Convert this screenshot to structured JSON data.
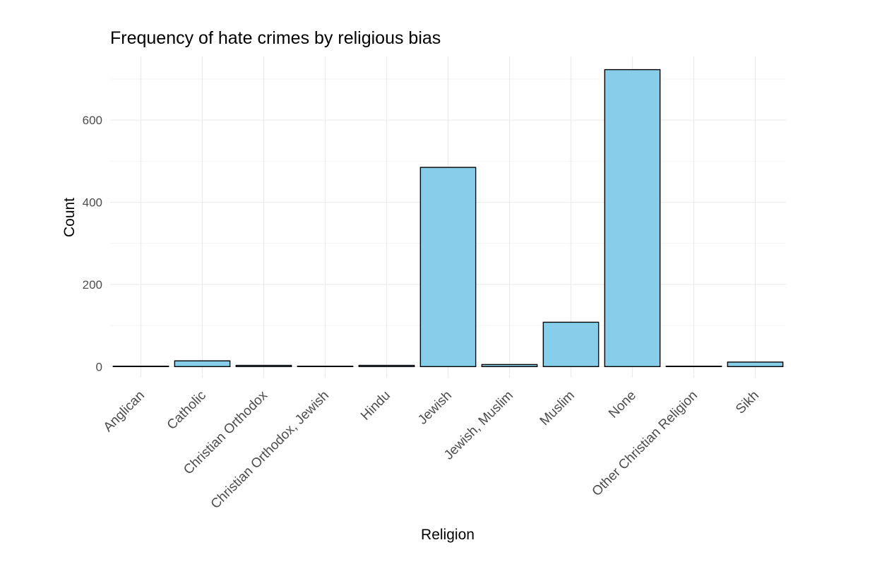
{
  "chart_data": {
    "type": "bar",
    "title": "Frequency of hate crimes by religious bias",
    "xlabel": "Religion",
    "ylabel": "Count",
    "categories": [
      "Anglican",
      "Catholic",
      "Christian Orthodox",
      "Christian Orthodox, Jewish",
      "Hindu",
      "Jewish",
      "Jewish, Muslim",
      "Muslim",
      "None",
      "Other Christian Religion",
      "Sikh"
    ],
    "values": [
      1,
      14,
      3,
      1,
      3,
      485,
      5,
      108,
      723,
      1,
      11
    ],
    "ylim": [
      -27,
      755
    ],
    "yticks": [
      0,
      200,
      400,
      600
    ],
    "ytick_labels": [
      "0",
      "200",
      "400",
      "600"
    ],
    "grid": true,
    "legend": "none",
    "colors": {
      "bar_fill": "#87ceeb",
      "bar_stroke": "#000000",
      "grid_major": "#ebebeb",
      "grid_minor": "#f4f4f4",
      "tick_text": "#4d4d4d"
    }
  }
}
